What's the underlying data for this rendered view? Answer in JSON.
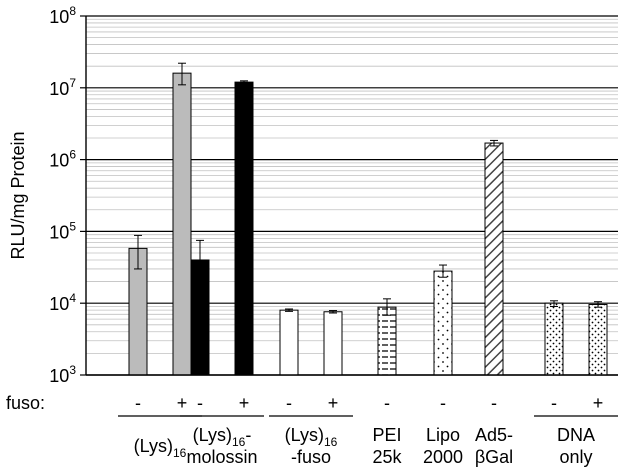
{
  "chart_data": {
    "type": "bar",
    "yscale": "log",
    "ylim": [
      1000,
      100000000
    ],
    "ylabel": "RLU/mg Protein",
    "yticks": [
      {
        "base": "10",
        "exp": "3"
      },
      {
        "base": "10",
        "exp": "4"
      },
      {
        "base": "10",
        "exp": "5"
      },
      {
        "base": "10",
        "exp": "6"
      },
      {
        "base": "10",
        "exp": "7"
      },
      {
        "base": "10",
        "exp": "8"
      }
    ],
    "grid": true,
    "fuso_row_label": "fuso:",
    "bars": [
      {
        "fuso": "-",
        "value": 58000,
        "err_low": 30000,
        "err_high": 88000,
        "fill": "#bbbbbb"
      },
      {
        "fuso": "+",
        "value": 16000000,
        "err_low": 11000000,
        "err_high": 22000000,
        "fill": "#bbbbbb"
      },
      {
        "fuso": "-",
        "value": 40000,
        "err_low": 18000,
        "err_high": 75000,
        "fill": "#000000"
      },
      {
        "fuso": "+",
        "value": 12000000,
        "err_low": 11500000,
        "err_high": 12500000,
        "fill": "#000000"
      },
      {
        "fuso": "-",
        "value": 8000,
        "err_low": 7700,
        "err_high": 8300,
        "fill": "#ffffff"
      },
      {
        "fuso": "+",
        "value": 7600,
        "err_low": 7300,
        "err_high": 7900,
        "fill": "#ffffff"
      },
      {
        "fuso": "-",
        "value": 8800,
        "err_low": 6800,
        "err_high": 11500,
        "fill": "hatch-horizontal"
      },
      {
        "fuso": "-",
        "value": 28000,
        "err_low": 23000,
        "err_high": 34000,
        "fill": "dots-sparse"
      },
      {
        "fuso": "-",
        "value": 1700000,
        "err_low": 1550000,
        "err_high": 1850000,
        "fill": "hatch-diagonal"
      },
      {
        "fuso": "-",
        "value": 10000,
        "err_low": 9000,
        "err_high": 10800,
        "fill": "dots-dense"
      },
      {
        "fuso": "+",
        "value": 9600,
        "err_low": 8800,
        "err_high": 10500,
        "fill": "dots-dense"
      }
    ],
    "groups": [
      {
        "line1": "(Lys)",
        "line1_sub": "16",
        "line2": "",
        "bar_indices": [
          0,
          1
        ]
      },
      {
        "line1": "(Lys)",
        "line1_sub": "16",
        "line1_suffix": "-",
        "line2": "molossin",
        "bar_indices": [
          2,
          3
        ]
      },
      {
        "line1": "(Lys)",
        "line1_sub": "16",
        "line2": "-fuso",
        "bar_indices": [
          4,
          5
        ]
      },
      {
        "line1": "PEI",
        "line2": "25k",
        "bar_indices": [
          6
        ]
      },
      {
        "line1": "Lipo",
        "line2": "2000",
        "bar_indices": [
          7
        ]
      },
      {
        "line1": "Ad5-",
        "line2": "βGal",
        "bar_indices": [
          8
        ]
      },
      {
        "line1": "DNA",
        "line2": "only",
        "bar_indices": [
          9,
          10
        ]
      }
    ]
  }
}
